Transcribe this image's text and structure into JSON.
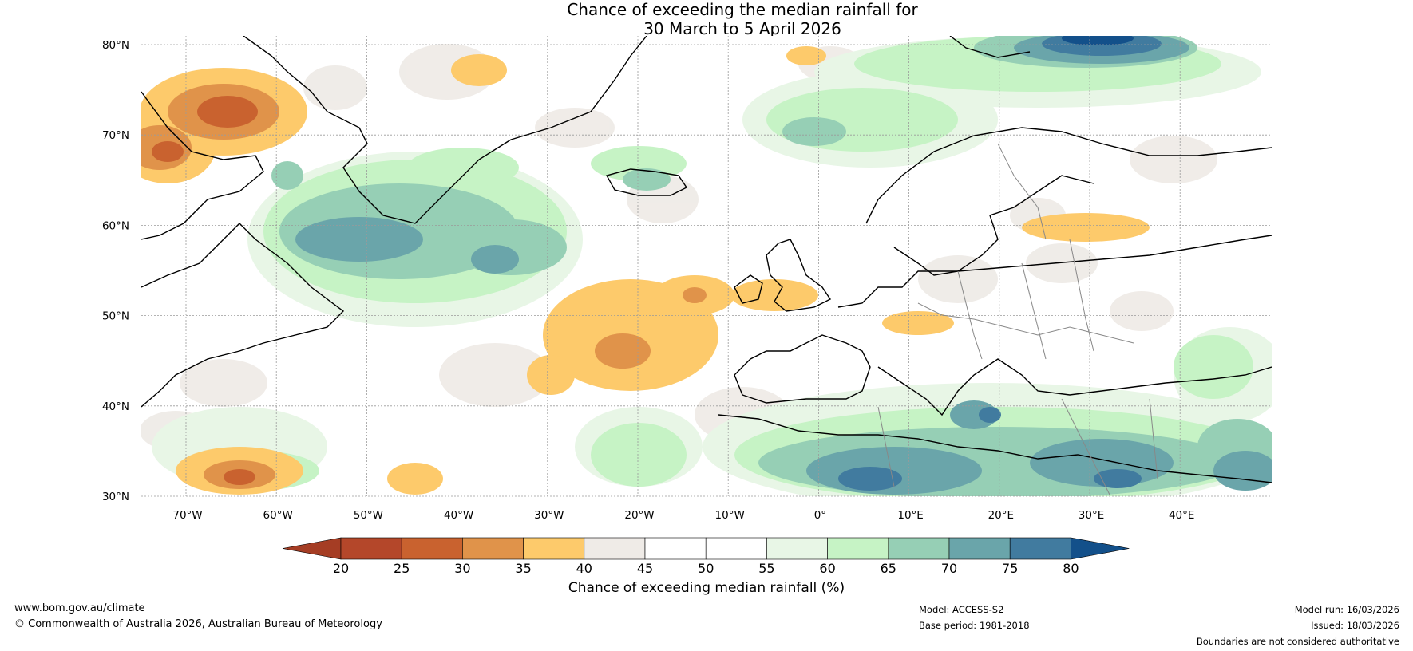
{
  "title": {
    "line1": "Chance of exceeding the median rainfall for",
    "line2": "30 March to 5 April 2026"
  },
  "map": {
    "lat_ticks": [
      "80°N",
      "70°N",
      "60°N",
      "50°N",
      "40°N",
      "30°N"
    ],
    "lon_ticks": [
      "70°W",
      "60°W",
      "50°W",
      "40°W",
      "30°W",
      "20°W",
      "10°W",
      "0°",
      "10°E",
      "20°E",
      "30°E",
      "40°E"
    ],
    "colors": {
      "ocean": "#ffffff",
      "grid": "#9a9a9a",
      "coast": "#000000",
      "border": "#888888"
    }
  },
  "colorbar": {
    "ticks": [
      "20",
      "25",
      "30",
      "35",
      "40",
      "45",
      "50",
      "55",
      "60",
      "65",
      "70",
      "75",
      "80"
    ],
    "colors": [
      "#b4472a",
      "#c9622f",
      "#e0934a",
      "#fdca6b",
      "#efebe7",
      "#ffffff",
      "#ffffff",
      "#e8f6e6",
      "#c6f3c5",
      "#96cfb5",
      "#6aa5aa",
      "#417b9f"
    ],
    "under_color": "#a53d24",
    "over_color": "#13508a",
    "label": "Chance of exceeding median rainfall (%)"
  },
  "footer": {
    "website": "www.bom.gov.au/climate",
    "copyright": "© Commonwealth of Australia 2026, Australian Bureau of Meteorology",
    "model": "Model: ACCESS-S2",
    "base_period": "Base period: 1981-2018",
    "model_run": "Model run: 16/03/2026",
    "issued": "Issued: 18/03/2026",
    "disclaimer": "Boundaries are not considered authoritative"
  }
}
